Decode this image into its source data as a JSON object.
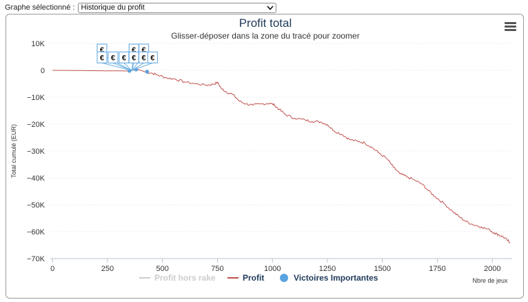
{
  "toolbar": {
    "label": "Graphe sélectionné :",
    "selected_graph": "Historique du profit"
  },
  "chart_data": {
    "type": "line",
    "title": "Profit total",
    "subtitle": "Glisser-déposer dans la zone du tracé pour zoomer",
    "xlabel": "Nbre de jeux",
    "ylabel": "Total cumulé (EUR)",
    "xlim": [
      -10,
      2090
    ],
    "ylim": [
      -70000,
      10000
    ],
    "x_ticks": [
      0,
      250,
      500,
      750,
      1000,
      1250,
      1500,
      1750,
      2000
    ],
    "y_ticks": [
      10000,
      0,
      -10000,
      -20000,
      -30000,
      -40000,
      -50000,
      -60000,
      -70000
    ],
    "y_tick_labels": [
      "10K",
      "0",
      "−10K",
      "−20K",
      "−30K",
      "−40K",
      "−50K",
      "−60K",
      "−70K"
    ],
    "grid": "horizontal dotted",
    "legend_position": "bottom-center",
    "series": [
      {
        "name": "Profit hors rake",
        "color": "#cccccc",
        "hidden": true,
        "points": []
      },
      {
        "name": "Profit",
        "color": "#c0504d",
        "points": [
          [
            0,
            0
          ],
          [
            100,
            -50
          ],
          [
            200,
            -150
          ],
          [
            300,
            -200
          ],
          [
            350,
            -250
          ],
          [
            380,
            300
          ],
          [
            400,
            100
          ],
          [
            420,
            -600
          ],
          [
            450,
            -1000
          ],
          [
            480,
            -1800
          ],
          [
            520,
            -2800
          ],
          [
            560,
            -3300
          ],
          [
            600,
            -4300
          ],
          [
            650,
            -5000
          ],
          [
            700,
            -5500
          ],
          [
            730,
            -5200
          ],
          [
            750,
            -4500
          ],
          [
            770,
            -7000
          ],
          [
            790,
            -8000
          ],
          [
            820,
            -9000
          ],
          [
            850,
            -11500
          ],
          [
            880,
            -12500
          ],
          [
            910,
            -13000
          ],
          [
            950,
            -12500
          ],
          [
            990,
            -12200
          ],
          [
            1010,
            -13000
          ],
          [
            1030,
            -14500
          ],
          [
            1060,
            -16500
          ],
          [
            1100,
            -17800
          ],
          [
            1150,
            -18500
          ],
          [
            1180,
            -19000
          ],
          [
            1220,
            -19200
          ],
          [
            1250,
            -20200
          ],
          [
            1280,
            -22500
          ],
          [
            1320,
            -24000
          ],
          [
            1350,
            -25700
          ],
          [
            1390,
            -26500
          ],
          [
            1420,
            -27000
          ],
          [
            1450,
            -28500
          ],
          [
            1480,
            -30500
          ],
          [
            1520,
            -32800
          ],
          [
            1550,
            -36000
          ],
          [
            1580,
            -38500
          ],
          [
            1610,
            -39500
          ],
          [
            1650,
            -41000
          ],
          [
            1680,
            -42300
          ],
          [
            1710,
            -44800
          ],
          [
            1740,
            -47000
          ],
          [
            1780,
            -49500
          ],
          [
            1820,
            -52500
          ],
          [
            1850,
            -54500
          ],
          [
            1880,
            -56200
          ],
          [
            1910,
            -57300
          ],
          [
            1950,
            -58200
          ],
          [
            1990,
            -59500
          ],
          [
            2010,
            -60500
          ],
          [
            2030,
            -61200
          ],
          [
            2050,
            -62000
          ],
          [
            2070,
            -63300
          ],
          [
            2080,
            -64000
          ]
        ]
      },
      {
        "name": "Victoires Importantes",
        "color": "#5aa3e0",
        "marker": "circle",
        "points": [
          [
            350,
            -200
          ],
          [
            380,
            300
          ],
          [
            430,
            -500
          ]
        ]
      }
    ],
    "annotations": {
      "icon": "euro-flag",
      "symbol": "€",
      "anchor": [
        360,
        -100
      ],
      "flags": [
        [
          225,
          7700
        ],
        [
          225,
          4800
        ],
        [
          275,
          4800
        ],
        [
          325,
          4800
        ],
        [
          370,
          7700
        ],
        [
          370,
          4800
        ],
        [
          415,
          7700
        ],
        [
          415,
          4800
        ],
        [
          455,
          4800
        ]
      ]
    }
  },
  "menu": {
    "icon": "hamburger-icon"
  }
}
